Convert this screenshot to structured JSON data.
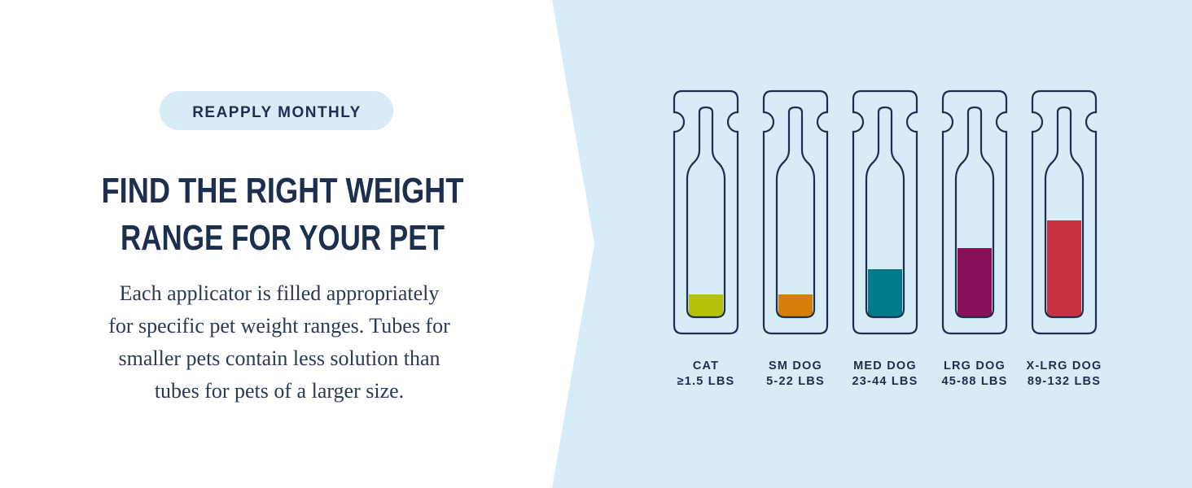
{
  "badge": "REAPPLY MONTHLY",
  "heading": {
    "line1": "FIND THE RIGHT WEIGHT",
    "line2": "RANGE FOR YOUR PET"
  },
  "body": [
    "Each applicator is filled appropriately",
    "for specific pet weight ranges. Tubes for",
    "smaller pets contain less solution than",
    "tubes for pets of a larger size."
  ],
  "tubes": [
    {
      "name": "CAT",
      "range": "≥1.5 LBS"
    },
    {
      "name": "SM DOG",
      "range": "5-22 LBS"
    },
    {
      "name": "MED DOG",
      "range": "23-44 LBS"
    },
    {
      "name": "LRG DOG",
      "range": "45-88 LBS"
    },
    {
      "name": "X-LRG DOG",
      "range": "89-132 LBS"
    }
  ]
}
